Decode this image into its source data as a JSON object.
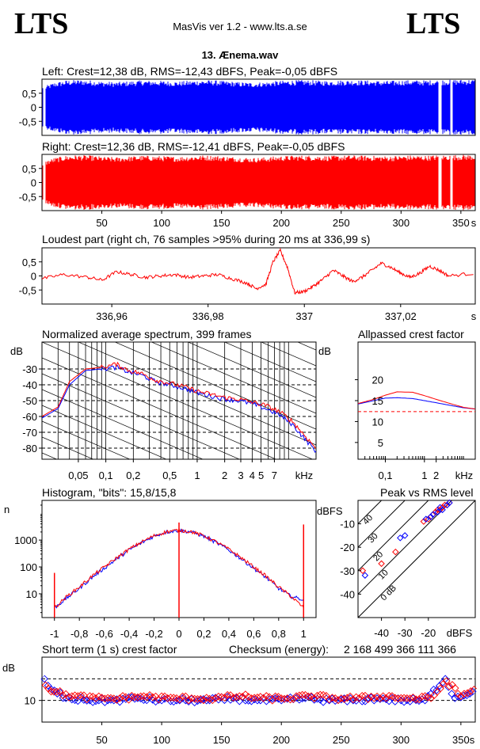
{
  "header": {
    "logo_left": "LTS",
    "logo_right": "LTS",
    "app_title": "MasVis ver 1.2 - www.lts.a.se",
    "file_title": "13. Ænema.wav"
  },
  "colors": {
    "left": "#0000ff",
    "right": "#ff0000",
    "axis": "#000000",
    "grid_dash": "#000000"
  },
  "chart_data": [
    {
      "id": "left_waveform",
      "type": "area",
      "title": "Left: Crest=12,38 dB, RMS=-12,43 dBFS, Peak=-0,05 dBFS",
      "yticks": [
        "0,5",
        "0",
        "-0,5"
      ],
      "ylim": [
        -1,
        1
      ],
      "xlim": [
        0,
        362
      ],
      "gaps_s": [
        [
          1,
          3
        ],
        [
          331,
          334
        ],
        [
          341,
          343
        ]
      ],
      "envelope": [
        0.72,
        0.88,
        0.96,
        0.98,
        0.96,
        0.92,
        0.9,
        0.93,
        0.96,
        0.95,
        0.94,
        0.92,
        0.95,
        0.97,
        0.96,
        0.93,
        0.9,
        0.88,
        0.9,
        0.94,
        0.96,
        0.97,
        0.96,
        0.95,
        0.96,
        0.97,
        0.96,
        0.95,
        0.94,
        0.96,
        0.97,
        0.96,
        0.98,
        0.98,
        0.99,
        0.99
      ]
    },
    {
      "id": "right_waveform",
      "type": "area",
      "title": "Right: Crest=12,36 dB, RMS=-12,41 dBFS, Peak=-0,05 dBFS",
      "yticks": [
        "0,5",
        "0",
        "-0,5"
      ],
      "ylim": [
        -1,
        1
      ],
      "xlim": [
        0,
        362
      ],
      "xticks": [
        50,
        100,
        150,
        200,
        250,
        300,
        350
      ],
      "xtick_labels": [
        "50",
        "100",
        "150",
        "200",
        "250",
        "300",
        "350"
      ],
      "x_unit": "s",
      "gaps_s": [
        [
          1,
          3
        ],
        [
          331,
          334
        ],
        [
          341,
          343
        ]
      ],
      "envelope": [
        0.72,
        0.88,
        0.96,
        0.98,
        0.96,
        0.92,
        0.9,
        0.93,
        0.96,
        0.95,
        0.94,
        0.92,
        0.95,
        0.97,
        0.96,
        0.93,
        0.9,
        0.88,
        0.9,
        0.94,
        0.96,
        0.97,
        0.96,
        0.95,
        0.96,
        0.97,
        0.96,
        0.95,
        0.94,
        0.96,
        0.97,
        0.96,
        0.98,
        0.98,
        0.99,
        0.99
      ]
    },
    {
      "id": "loudest_part",
      "type": "line",
      "title": "Loudest part (right ch, 76 samples >95% during 20 ms at 336,99 s)",
      "yticks": [
        "0,5",
        "0",
        "-0,5"
      ],
      "ylim": [
        -1,
        1
      ],
      "xlim": [
        336.9455,
        337.0355
      ],
      "xticks": [
        336.96,
        336.98,
        337,
        337.02
      ],
      "xtick_labels": [
        "336,96",
        "336,98",
        "337",
        "337,02"
      ],
      "x_unit": "s",
      "x": [
        336.9455,
        336.95,
        336.955,
        336.958,
        336.961,
        336.964,
        336.967,
        336.97,
        336.973,
        336.976,
        336.979,
        336.982,
        336.985,
        336.988,
        336.99,
        336.992,
        336.9935,
        336.995,
        336.9965,
        336.998,
        337.0,
        337.002,
        337.004,
        337.006,
        337.008,
        337.01,
        337.012,
        337.014,
        337.016,
        337.018,
        337.02,
        337.022,
        337.024,
        337.026,
        337.028,
        337.03,
        337.0355
      ],
      "y": [
        -0.1,
        0.05,
        -0.05,
        -0.15,
        0.15,
        0.05,
        -0.05,
        0.0,
        0.05,
        -0.05,
        0.0,
        0.05,
        -0.1,
        -0.25,
        -0.45,
        -0.3,
        0.5,
        0.9,
        0.3,
        -0.6,
        -0.55,
        -0.35,
        -0.1,
        0.2,
        0.0,
        -0.2,
        -0.05,
        0.2,
        0.45,
        0.3,
        0.1,
        -0.05,
        0.1,
        0.35,
        0.2,
        0.0,
        0.1
      ]
    },
    {
      "id": "spectrum",
      "type": "line",
      "title": "Normalized average spectrum, 399 frames",
      "ylabel": "dB",
      "yticks": [
        -30,
        -40,
        -50,
        -60,
        -70,
        -80
      ],
      "ylim": [
        -87,
        -13
      ],
      "x_log": true,
      "xlim": [
        0.02,
        20
      ],
      "xticks": [
        0.05,
        0.1,
        0.2,
        0.5,
        1,
        2,
        3,
        4,
        5,
        7
      ],
      "xtick_labels": [
        "0,05",
        "0,1",
        "0,2",
        "0,5",
        "1",
        "2",
        "3",
        "4",
        "5",
        "7"
      ],
      "x_unit": "kHz",
      "series": [
        {
          "color": "#0000ff",
          "x": [
            0.02,
            0.03,
            0.04,
            0.06,
            0.09,
            0.13,
            0.18,
            0.25,
            0.35,
            0.5,
            0.7,
            1.0,
            1.4,
            2.0,
            2.8,
            4.0,
            5.6,
            8.0,
            11,
            15,
            20
          ],
          "y": [
            -61,
            -55,
            -40,
            -31,
            -30,
            -29,
            -32,
            -34,
            -38,
            -40,
            -42,
            -45,
            -47,
            -49,
            -50,
            -52,
            -55,
            -59,
            -65,
            -74,
            -82
          ]
        },
        {
          "color": "#ff0000",
          "x": [
            0.02,
            0.03,
            0.04,
            0.06,
            0.09,
            0.13,
            0.18,
            0.25,
            0.35,
            0.5,
            0.7,
            1.0,
            1.4,
            2.0,
            2.8,
            4.0,
            5.6,
            8.0,
            11,
            15,
            20
          ],
          "y": [
            -60,
            -54,
            -38,
            -30,
            -29,
            -27,
            -31,
            -33,
            -37,
            -39,
            -41,
            -44,
            -46,
            -48,
            -49,
            -51,
            -53,
            -57,
            -63,
            -72,
            -80
          ]
        }
      ]
    },
    {
      "id": "allpassed_crest",
      "type": "line",
      "title": "Allpassed crest factor",
      "ylabel": "dB",
      "yticks": [
        20,
        15,
        10,
        5
      ],
      "ylim": [
        1,
        29
      ],
      "x_log": true,
      "xlim": [
        0.02,
        20
      ],
      "xticks": [
        0.1,
        1,
        2
      ],
      "xtick_labels": [
        "0,1",
        "1",
        "2"
      ],
      "x_unit": "kHz",
      "reference_crest_db": 12.37,
      "series": [
        {
          "color": "#0000ff",
          "x": [
            0.02,
            0.05,
            0.1,
            0.2,
            0.5,
            1,
            2,
            5,
            10,
            20
          ],
          "y": [
            14.2,
            15.0,
            15.6,
            15.7,
            15.5,
            15.0,
            14.5,
            13.8,
            13.3,
            13.0
          ]
        },
        {
          "color": "#ff0000",
          "x": [
            0.02,
            0.05,
            0.1,
            0.2,
            0.5,
            1,
            2,
            5,
            10,
            20
          ],
          "y": [
            14.3,
            15.3,
            16.3,
            17.1,
            17.0,
            16.2,
            15.3,
            14.2,
            13.4,
            13.0
          ]
        }
      ]
    },
    {
      "id": "histogram",
      "type": "line",
      "title": "Histogram, \"bits\": 15,8/15,8",
      "ylabel": "n",
      "y_log": true,
      "ylim": [
        1.3,
        30000
      ],
      "yticks": [
        1000,
        100,
        10
      ],
      "ytick_labels": [
        "1000",
        "100",
        "10"
      ],
      "xlim": [
        -1.1,
        1.1
      ],
      "xticks": [
        -1,
        -0.8,
        -0.6,
        -0.4,
        -0.2,
        0,
        0.2,
        0.4,
        0.6,
        0.8,
        1
      ],
      "xtick_labels": [
        "-1",
        "-0,8",
        "-0,6",
        "-0,4",
        "-0,2",
        "0",
        "0,2",
        "0,4",
        "0,6",
        "0,8",
        "1"
      ],
      "x": [
        -1,
        -0.9,
        -0.8,
        -0.7,
        -0.6,
        -0.5,
        -0.4,
        -0.3,
        -0.2,
        -0.1,
        0,
        0.1,
        0.2,
        0.3,
        0.4,
        0.5,
        0.6,
        0.7,
        0.8,
        0.9,
        1
      ],
      "series": [
        {
          "color": "#0000ff",
          "y": [
            3,
            7,
            16,
            40,
            90,
            200,
            430,
            800,
            1400,
            2000,
            2300,
            2000,
            1400,
            800,
            430,
            200,
            90,
            40,
            16,
            8,
            6
          ]
        },
        {
          "color": "#ff0000",
          "y": [
            3,
            8,
            18,
            45,
            100,
            220,
            460,
            850,
            1450,
            2050,
            2350,
            2050,
            1450,
            850,
            460,
            220,
            100,
            45,
            18,
            8,
            3
          ]
        }
      ],
      "spikes": [
        {
          "x": -1,
          "y": 60
        },
        {
          "x": 0,
          "y": 4500
        },
        {
          "x": 1,
          "y": 3800
        }
      ]
    },
    {
      "id": "peak_vs_rms",
      "type": "scatter",
      "title": "Peak vs RMS level",
      "ylabel": "dBFS",
      "xlim": [
        -50,
        0
      ],
      "ylim": [
        -50,
        0
      ],
      "xticks": [
        -40,
        -30,
        -20
      ],
      "xtick_labels": [
        "-40",
        "-30",
        "-20"
      ],
      "yticks": [
        -10,
        -20,
        -30,
        -40
      ],
      "ytick_labels": [
        "-10",
        "-20",
        "-30",
        "-40"
      ],
      "x_unit": "dBFS",
      "diagonal_labels": [
        "40",
        "30",
        "20",
        "10",
        "0 dB"
      ],
      "diagonal_offsets_db": [
        40,
        30,
        20,
        10,
        0
      ],
      "series": [
        {
          "color": "#ff0000",
          "x": [
            -48,
            -40,
            -34,
            -22,
            -20,
            -19,
            -18,
            -17,
            -16,
            -15,
            -14,
            -13,
            -12,
            -11
          ],
          "y": [
            -30,
            -27,
            -22,
            -9,
            -8,
            -7,
            -6,
            -5,
            -4,
            -4,
            -3,
            -2,
            -2,
            -1
          ]
        },
        {
          "color": "#0000ff",
          "x": [
            -47,
            -32,
            -30,
            -21,
            -19,
            -18,
            -16,
            -15,
            -14,
            -12,
            -11
          ],
          "y": [
            -32,
            -16,
            -15,
            -8,
            -7,
            -6,
            -5,
            -3,
            -4,
            -2,
            -1
          ]
        }
      ]
    },
    {
      "id": "short_term_crest",
      "type": "scatter",
      "title": "Short term (1 s) crest factor",
      "checksum_label": "Checksum (energy):",
      "checksum_value": "2 168 499 366 111 366",
      "ylabel": "dB",
      "ytick_labels": [
        "10"
      ],
      "yticks": [
        10
      ],
      "ylim": [
        0,
        30
      ],
      "reference_lines_db": [
        10,
        20
      ],
      "xlim": [
        0,
        362
      ],
      "xticks": [
        50,
        100,
        150,
        200,
        250,
        300,
        350
      ],
      "xtick_labels": [
        "50",
        "100",
        "150",
        "200",
        "250",
        "300",
        "350"
      ],
      "x_unit": "s",
      "series": [
        {
          "color": "#0000ff",
          "x": [
            2,
            8,
            20,
            40,
            60,
            80,
            100,
            120,
            140,
            160,
            180,
            200,
            220,
            240,
            260,
            280,
            300,
            320,
            337,
            345,
            360
          ],
          "y": [
            20,
            15,
            11,
            10,
            10,
            11,
            10,
            10,
            10,
            11,
            10,
            10,
            11,
            10,
            10,
            11,
            10,
            10,
            20,
            11,
            14
          ]
        },
        {
          "color": "#ff0000",
          "x": [
            3,
            10,
            25,
            45,
            65,
            85,
            105,
            125,
            145,
            165,
            185,
            205,
            225,
            245,
            265,
            285,
            305,
            325,
            338,
            350,
            361
          ],
          "y": [
            17,
            14,
            12,
            11,
            11,
            12,
            11,
            11,
            11,
            12,
            11,
            11,
            12,
            11,
            11,
            12,
            11,
            11,
            19,
            12,
            15
          ]
        }
      ]
    }
  ]
}
